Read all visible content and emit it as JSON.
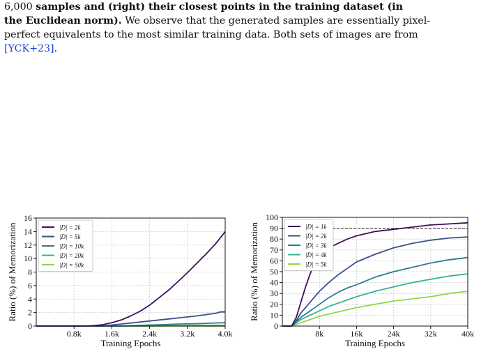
{
  "caption": {
    "line1_normal": "6,000 ",
    "line1_bold": "samples and (right) their closest points in the training dataset (in",
    "line2_bold": "the Euclidean norm).",
    "line2_normal": " We observe that the generated samples are essentially pixel-",
    "line3": "perfect equivalents to the most similar training data. Both sets of images are from",
    "cite": "[YCK+23]",
    "tail": "."
  },
  "chart_data": [
    {
      "type": "line",
      "xlabel": "Training Epochs",
      "ylabel": "Ratio (%) of Memorization",
      "xlim": [
        0,
        4000
      ],
      "ylim": [
        0,
        16
      ],
      "xticks": [
        800,
        1600,
        2400,
        3200,
        4000
      ],
      "xticklabels": [
        "0.8k",
        "1.6k",
        "2.4k",
        "3.2k",
        "4.0k"
      ],
      "yticks": [
        0,
        2,
        4,
        6,
        8,
        10,
        12,
        14,
        16
      ],
      "grid": true,
      "legend": "top-left",
      "series": [
        {
          "name": "|D| = 2k",
          "color": "#3f0f5c",
          "x": [
            0,
            1000,
            1200,
            1400,
            1600,
            1800,
            2000,
            2200,
            2400,
            2600,
            2800,
            3000,
            3200,
            3400,
            3600,
            3800,
            4000
          ],
          "values": [
            0,
            0,
            0.05,
            0.2,
            0.5,
            0.9,
            1.5,
            2.2,
            3.1,
            4.2,
            5.3,
            6.6,
            7.9,
            9.3,
            10.7,
            12.2,
            14
          ]
        },
        {
          "name": "|D| = 5k",
          "color": "#3b4d8c",
          "x": [
            0,
            1400,
            1800,
            2200,
            2600,
            3000,
            3400,
            3800,
            3900,
            4000
          ],
          "values": [
            0,
            0,
            0.3,
            0.6,
            0.9,
            1.2,
            1.5,
            1.9,
            2.1,
            2.1
          ]
        },
        {
          "name": "|D| = 10k",
          "color": "#2f7b92",
          "x": [
            0,
            1800,
            2200,
            2600,
            3000,
            3400,
            3800,
            4000
          ],
          "values": [
            0,
            0,
            0.1,
            0.2,
            0.3,
            0.35,
            0.45,
            0.5
          ]
        },
        {
          "name": "|D| = 20k",
          "color": "#35b391",
          "x": [
            0,
            2000,
            2800,
            3600,
            4000
          ],
          "values": [
            0,
            0,
            0.05,
            0.1,
            0.1
          ]
        },
        {
          "name": "|D| = 50k",
          "color": "#8fd744",
          "x": [
            0,
            4000
          ],
          "values": [
            0,
            0
          ]
        }
      ]
    },
    {
      "type": "line",
      "xlabel": "Training Epochs",
      "ylabel": "Ratio (%) of Memorization",
      "xlim": [
        0,
        40000
      ],
      "ylim": [
        0,
        100
      ],
      "xticks": [
        8000,
        16000,
        24000,
        32000,
        40000
      ],
      "xticklabels": [
        "8k",
        "16k",
        "24k",
        "32k",
        "40k"
      ],
      "yticks": [
        0,
        10,
        20,
        30,
        40,
        50,
        60,
        70,
        80,
        90,
        100
      ],
      "grid": true,
      "legend": "top-left",
      "reference_line_y": 90,
      "series": [
        {
          "name": "|D| = 1k",
          "color": "#3f0f5c",
          "x": [
            0,
            2000,
            3000,
            4000,
            5000,
            6000,
            7000,
            8000,
            10000,
            12000,
            14000,
            16000,
            20000,
            24000,
            28000,
            32000,
            36000,
            40000
          ],
          "values": [
            0,
            0,
            8,
            22,
            36,
            48,
            58,
            65,
            72,
            76,
            80,
            83,
            87,
            89,
            91,
            93,
            94,
            95
          ]
        },
        {
          "name": "|D| = 2k",
          "color": "#3b4d8c",
          "x": [
            0,
            2000,
            3000,
            4000,
            6000,
            8000,
            10000,
            12000,
            14000,
            16000,
            20000,
            24000,
            28000,
            32000,
            36000,
            40000
          ],
          "values": [
            0,
            0,
            5,
            12,
            22,
            32,
            40,
            47,
            53,
            59,
            66,
            72,
            76,
            79,
            81,
            82
          ]
        },
        {
          "name": "|D| = 3k",
          "color": "#2f7b92",
          "x": [
            0,
            2000,
            4000,
            6000,
            8000,
            10000,
            12000,
            14000,
            16000,
            20000,
            24000,
            28000,
            32000,
            36000,
            40000
          ],
          "values": [
            0,
            0,
            8,
            14,
            20,
            26,
            31,
            35,
            38,
            45,
            50,
            54,
            58,
            61,
            63
          ]
        },
        {
          "name": "|D| = 4k",
          "color": "#35b391",
          "x": [
            0,
            2000,
            4000,
            6000,
            8000,
            10000,
            12000,
            14000,
            16000,
            20000,
            24000,
            28000,
            32000,
            36000,
            40000
          ],
          "values": [
            0,
            0,
            6,
            10,
            14,
            18,
            21,
            24,
            27,
            32,
            36,
            40,
            43,
            46,
            48
          ]
        },
        {
          "name": "|D| = 5k",
          "color": "#8fd744",
          "x": [
            0,
            2000,
            4000,
            6000,
            8000,
            10000,
            12000,
            14000,
            16000,
            20000,
            24000,
            28000,
            32000,
            36000,
            40000
          ],
          "values": [
            0,
            0,
            3,
            6,
            9,
            11,
            13,
            15,
            17,
            20,
            23,
            25,
            27,
            30,
            32
          ]
        }
      ]
    }
  ]
}
